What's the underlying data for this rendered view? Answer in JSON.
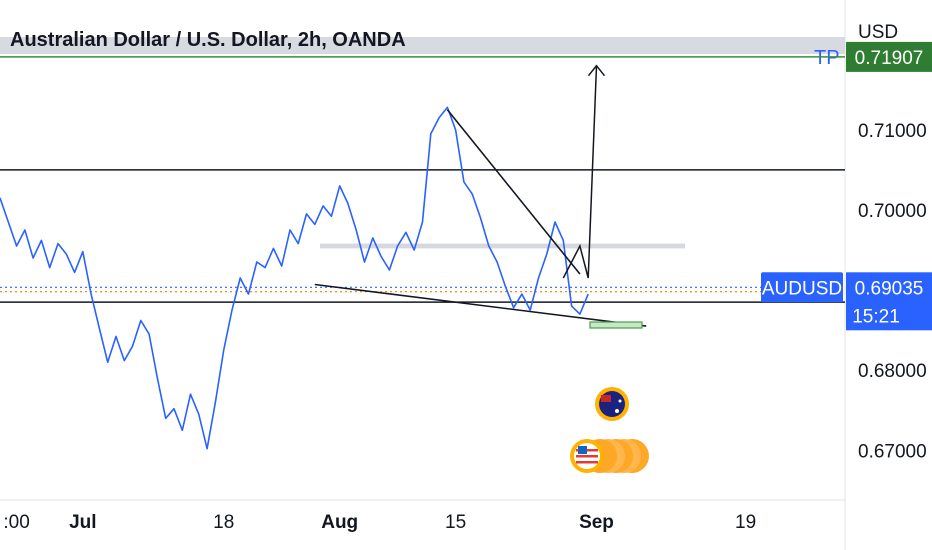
{
  "colors": {
    "candle": "#2962ff",
    "level_line": "#131722",
    "tp_line": "#388e3c",
    "tp_label_bg": "#2e7d32",
    "price_label_bg": "#2962ff",
    "zone": "#d1d4dc",
    "orange_dotted": "#f57c00"
  },
  "chart_data": {
    "type": "line",
    "title": "Australian Dollar / U.S. Dollar, 2h, OANDA",
    "currency": "USD",
    "x_ticks": [
      {
        "label": ":00",
        "day": -8
      },
      {
        "label": "Jul",
        "day": 0
      },
      {
        "label": "18",
        "day": 17
      },
      {
        "label": "Aug",
        "day": 31
      },
      {
        "label": "15",
        "day": 45
      },
      {
        "label": "Sep",
        "day": 62
      },
      {
        "label": "19",
        "day": 80
      }
    ],
    "y_ticks": [
      0.71,
      0.7,
      0.68,
      0.67
    ],
    "y_tick_labels": [
      "0.71000",
      "0.70000",
      "0.68000",
      "0.67000"
    ],
    "ylim": [
      0.6638,
      0.7262
    ],
    "xlim_days": [
      -10,
      92
    ],
    "series": [
      {
        "name": "AUDUSD",
        "points": [
          [
            -10,
            0.7015
          ],
          [
            -9,
            0.6985
          ],
          [
            -8,
            0.6955
          ],
          [
            -7,
            0.6975
          ],
          [
            -6,
            0.694
          ],
          [
            -5,
            0.6962
          ],
          [
            -4,
            0.6928
          ],
          [
            -3,
            0.6958
          ],
          [
            -2,
            0.6945
          ],
          [
            -1,
            0.6922
          ],
          [
            0,
            0.6948
          ],
          [
            1,
            0.6895
          ],
          [
            2,
            0.6852
          ],
          [
            3,
            0.681
          ],
          [
            4,
            0.6842
          ],
          [
            5,
            0.6812
          ],
          [
            6,
            0.683
          ],
          [
            7,
            0.6862
          ],
          [
            8,
            0.6845
          ],
          [
            9,
            0.679
          ],
          [
            10,
            0.674
          ],
          [
            11,
            0.6752
          ],
          [
            12,
            0.6725
          ],
          [
            13,
            0.677
          ],
          [
            14,
            0.6745
          ],
          [
            15,
            0.6702
          ],
          [
            16,
            0.676
          ],
          [
            17,
            0.6825
          ],
          [
            18,
            0.6875
          ],
          [
            19,
            0.6915
          ],
          [
            20,
            0.6895
          ],
          [
            21,
            0.6935
          ],
          [
            22,
            0.6928
          ],
          [
            23,
            0.6952
          ],
          [
            24,
            0.693
          ],
          [
            25,
            0.6975
          ],
          [
            26,
            0.6958
          ],
          [
            27,
            0.6995
          ],
          [
            28,
            0.6982
          ],
          [
            29,
            0.7005
          ],
          [
            30,
            0.6992
          ],
          [
            31,
            0.703
          ],
          [
            32,
            0.7008
          ],
          [
            33,
            0.6975
          ],
          [
            34,
            0.6935
          ],
          [
            35,
            0.6965
          ],
          [
            36,
            0.6942
          ],
          [
            37,
            0.6925
          ],
          [
            38,
            0.6955
          ],
          [
            39,
            0.6972
          ],
          [
            40,
            0.695
          ],
          [
            41,
            0.6985
          ],
          [
            42,
            0.7095
          ],
          [
            43,
            0.7115
          ],
          [
            44,
            0.7128
          ],
          [
            45,
            0.71
          ],
          [
            46,
            0.7035
          ],
          [
            47,
            0.702
          ],
          [
            48,
            0.699
          ],
          [
            49,
            0.6955
          ],
          [
            50,
            0.6935
          ],
          [
            51,
            0.6905
          ],
          [
            52,
            0.6878
          ],
          [
            53,
            0.6895
          ],
          [
            54,
            0.6875
          ],
          [
            55,
            0.6915
          ],
          [
            56,
            0.6945
          ],
          [
            57,
            0.6985
          ],
          [
            58,
            0.6962
          ],
          [
            59,
            0.688
          ],
          [
            60,
            0.687
          ],
          [
            61,
            0.6895
          ]
        ]
      }
    ],
    "levels": {
      "resistance": 0.705,
      "support": 0.6885,
      "tp": 0.7191,
      "zone": [
        0.6952,
        0.6958
      ],
      "blue_dotted": 0.69035,
      "orange_dotted": 0.6898
    },
    "trendlines": [
      {
        "from": [
          44,
          0.7125
        ],
        "to": [
          60,
          0.692
        ]
      },
      {
        "from": [
          28,
          0.6907
        ],
        "to": [
          68,
          0.6855
        ]
      }
    ],
    "projection": [
      [
        58,
        0.6915
      ],
      [
        60,
        0.6955
      ],
      [
        61,
        0.6915
      ],
      [
        62,
        0.718
      ]
    ],
    "tp_label": "TP",
    "tp_price_label": "0.71907",
    "symbol_label": "AUDUSD",
    "current_price_label": "0.69035",
    "countdown": "15:21"
  }
}
